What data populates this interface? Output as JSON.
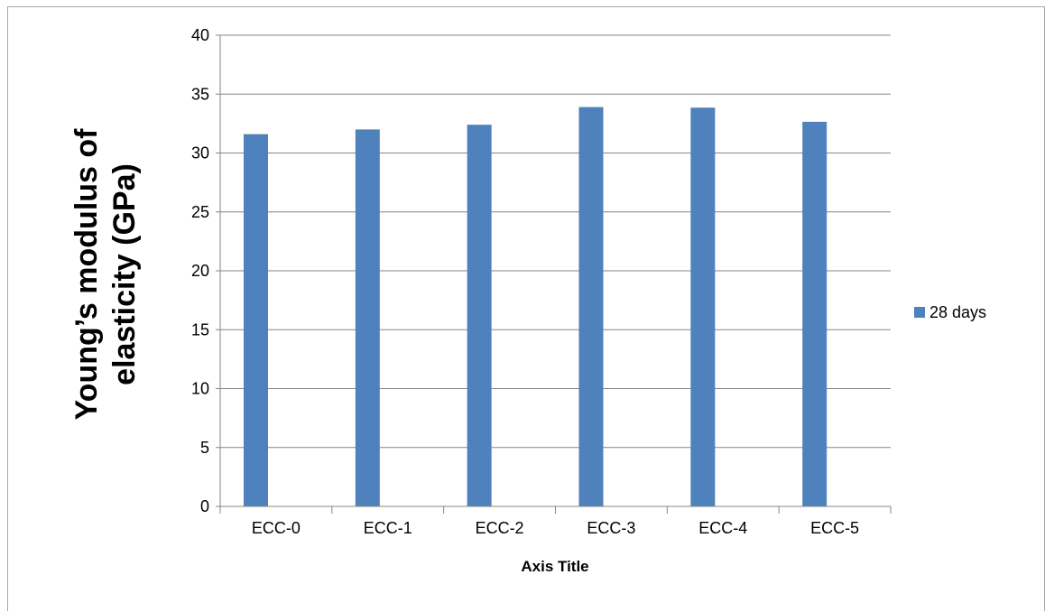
{
  "chart_data": {
    "type": "bar",
    "categories": [
      "ECC-0",
      "ECC-1",
      "ECC-2",
      "ECC-3",
      "ECC-4",
      "ECC-5"
    ],
    "series": [
      {
        "name": "28 days",
        "values": [
          31.6,
          32.0,
          32.4,
          33.9,
          33.85,
          32.65
        ],
        "color": "#4f81bd"
      }
    ],
    "xlabel": "Axis Title",
    "ylabel_lines": [
      "Young’s modulus of",
      "elasticity (GPa)"
    ],
    "ylim": [
      0,
      40
    ],
    "yticks": [
      "0",
      "5",
      "10",
      "15",
      "20",
      "25",
      "30",
      "35",
      "40"
    ],
    "grid": "horizontal",
    "legend": "right"
  },
  "colors": {
    "bar": "#4f81bd",
    "grid": "#868686",
    "axis": "#868686",
    "frame": "#a6a6a6"
  }
}
